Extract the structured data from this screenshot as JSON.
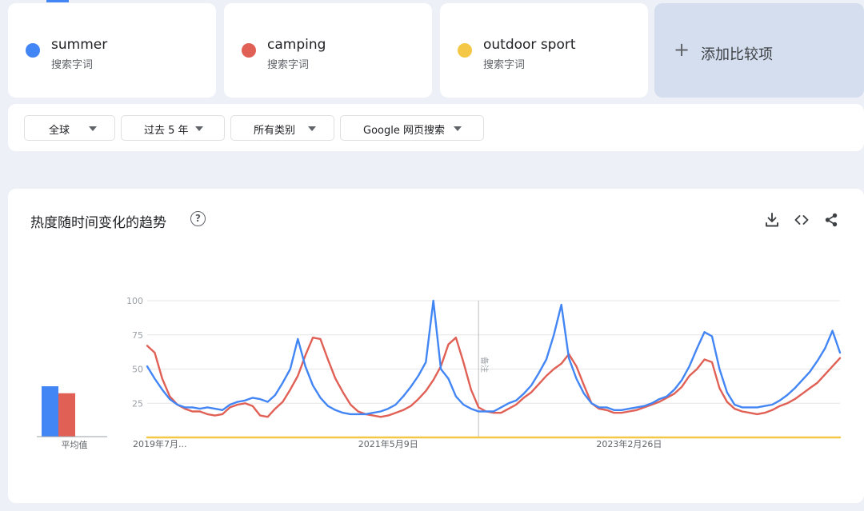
{
  "terms": [
    {
      "name": "summer",
      "sub": "搜索字词",
      "color": "#4285f4"
    },
    {
      "name": "camping",
      "sub": "搜索字词",
      "color": "#e06055"
    },
    {
      "name": "outdoor sport",
      "sub": "搜索字词",
      "color": "#f4c846"
    }
  ],
  "add_compare": {
    "plus": "+",
    "label": "添加比较项"
  },
  "filters": [
    {
      "label": "全球"
    },
    {
      "label": "过去 5 年"
    },
    {
      "label": "所有类别"
    },
    {
      "label": "Google 网页搜索"
    }
  ],
  "chart": {
    "title": "热度随时间变化的趋势",
    "help": "?",
    "toolbar": [
      "download-icon",
      "embed-icon",
      "share-icon"
    ],
    "avg_label": "平均值",
    "note_label": "备注"
  },
  "chart_data": {
    "type": "line",
    "ylim": [
      0,
      100
    ],
    "y_ticks": [
      100,
      75,
      50,
      25
    ],
    "x_tick_labels": [
      "2019年7月...",
      "2021年5月9日",
      "2023年2月26日"
    ],
    "x_tick_index": [
      0,
      32,
      64
    ],
    "note_index": 44,
    "grid": true,
    "averages": [
      {
        "term": "summer",
        "value": 36
      },
      {
        "term": "camping",
        "value": 31
      }
    ],
    "series": [
      {
        "name": "summer",
        "color": "#4285f4",
        "values": [
          52,
          43,
          35,
          28,
          24,
          22,
          22,
          21,
          22,
          21,
          20,
          24,
          26,
          27,
          29,
          28,
          26,
          31,
          40,
          50,
          72,
          52,
          38,
          29,
          23,
          20,
          18,
          17,
          17,
          17,
          18,
          19,
          21,
          24,
          30,
          37,
          45,
          55,
          100,
          50,
          43,
          30,
          24,
          21,
          19,
          19,
          19,
          22,
          25,
          27,
          32,
          38,
          47,
          57,
          75,
          97,
          58,
          43,
          32,
          25,
          22,
          22,
          20,
          20,
          21,
          22,
          23,
          25,
          28,
          30,
          35,
          42,
          52,
          65,
          77,
          74,
          50,
          33,
          24,
          22,
          22,
          22,
          23,
          24,
          27,
          31,
          36,
          42,
          48,
          56,
          65,
          78,
          62
        ]
      },
      {
        "name": "camping",
        "color": "#e06055",
        "values": [
          67,
          62,
          43,
          30,
          24,
          21,
          19,
          19,
          17,
          16,
          17,
          22,
          24,
          25,
          23,
          16,
          15,
          21,
          26,
          35,
          45,
          60,
          73,
          72,
          57,
          43,
          33,
          24,
          19,
          17,
          16,
          15,
          16,
          18,
          20,
          23,
          28,
          34,
          42,
          52,
          68,
          73,
          55,
          35,
          22,
          19,
          18,
          18,
          21,
          24,
          29,
          33,
          39,
          45,
          50,
          54,
          61,
          52,
          38,
          25,
          21,
          20,
          18,
          18,
          19,
          20,
          22,
          24,
          26,
          29,
          32,
          37,
          45,
          50,
          57,
          55,
          36,
          26,
          21,
          19,
          18,
          17,
          18,
          20,
          23,
          25,
          28,
          32,
          36,
          40,
          46,
          52,
          58
        ]
      },
      {
        "name": "outdoor sport",
        "color": "#f4c846",
        "values": [
          0,
          0,
          0,
          0,
          0,
          0,
          0,
          0,
          0,
          0,
          0,
          0,
          0,
          0,
          0,
          0,
          0,
          0,
          0,
          0,
          0,
          0,
          0,
          0,
          0,
          0,
          0,
          0,
          0,
          0,
          0,
          0,
          0,
          0,
          0,
          0,
          0,
          0,
          0,
          0,
          0,
          0,
          0,
          0,
          0,
          0,
          0,
          0,
          0,
          0,
          0,
          0,
          0,
          0,
          0,
          0,
          0,
          0,
          0,
          0,
          0,
          0,
          0,
          0,
          0,
          0,
          0,
          0,
          0,
          0,
          0,
          0,
          0,
          0,
          0,
          0,
          0,
          0,
          0,
          0,
          0,
          0,
          0,
          0,
          0,
          0,
          0,
          0,
          0,
          0,
          0,
          0,
          0
        ]
      }
    ]
  }
}
